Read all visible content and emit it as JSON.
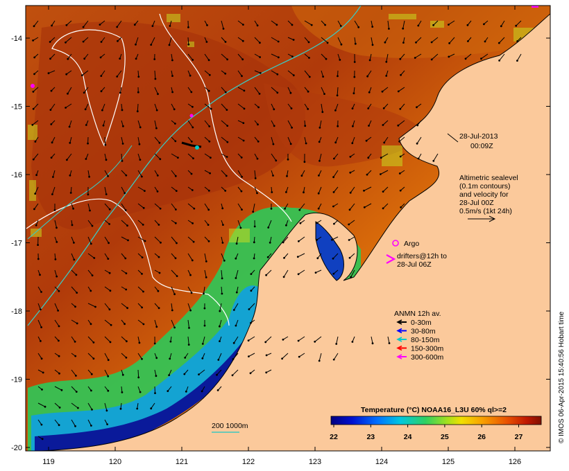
{
  "map": {
    "date_label": "28-Jul-2013",
    "time_label": "00:09Z",
    "altimetry_lines": [
      "Altimetric sealevel",
      "(0.1m contours)",
      "and velocity for",
      "28-Jul 00Z",
      "0.5m/s (1kt 24h)"
    ],
    "argo_label": "Argo",
    "drifters_lines": [
      "drifters@12h to",
      "28-Jul 06Z"
    ],
    "anmn_title": "ANMN 12h av.",
    "anmn_legend": [
      {
        "label": "0-30m",
        "color": "#000000"
      },
      {
        "label": "30-80m",
        "color": "#0000ff"
      },
      {
        "label": "80-150m",
        "color": "#00c8c8"
      },
      {
        "label": "150-300m",
        "color": "#ff0000"
      },
      {
        "label": "300-600m",
        "color": "#ff00ff"
      }
    ],
    "isobath_label": "200  1000m",
    "colorbar_title": "Temperature (°C) NOAA16_L3U 60% ql>=2",
    "colorbar_ticks": [
      "22",
      "23",
      "24",
      "25",
      "26",
      "27"
    ],
    "credit": "© IMOS 06-Apr-2015 15:40:56 Hobart time",
    "lon_ticks": [
      "119",
      "120",
      "121",
      "122",
      "123",
      "124",
      "125",
      "126"
    ],
    "lat_ticks": [
      "-14",
      "-15",
      "-16",
      "-17",
      "-18",
      "-19",
      "-20"
    ]
  },
  "colors": {
    "land": "#fbc99b",
    "warm": "#b43c0a",
    "mid": "#e8820a",
    "cool": "#22c455",
    "cold": "#0a1e9a",
    "contour_white": "#ffffff",
    "contour_cyan": "#3cc8c0",
    "magenta": "#ff00ff"
  }
}
